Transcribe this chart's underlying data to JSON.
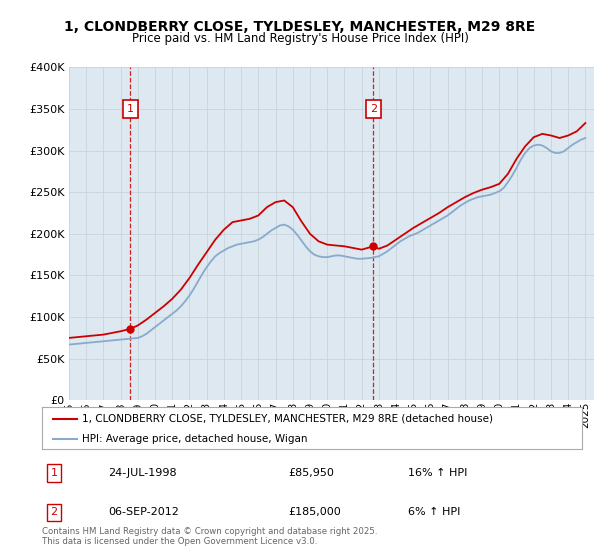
{
  "title": "1, CLONDBERRY CLOSE, TYLDESLEY, MANCHESTER, M29 8RE",
  "subtitle": "Price paid vs. HM Land Registry's House Price Index (HPI)",
  "legend_line1": "1, CLONDBERRY CLOSE, TYLDESLEY, MANCHESTER, M29 8RE (detached house)",
  "legend_line2": "HPI: Average price, detached house, Wigan",
  "footer": "Contains HM Land Registry data © Crown copyright and database right 2025.\nThis data is licensed under the Open Government Licence v3.0.",
  "transactions": [
    {
      "num": 1,
      "date": "24-JUL-1998",
      "price": "£85,950",
      "hpi": "16% ↑ HPI",
      "year": 1998.56,
      "price_val": 85950
    },
    {
      "num": 2,
      "date": "06-SEP-2012",
      "price": "£185,000",
      "hpi": "6% ↑ HPI",
      "year": 2012.68,
      "price_val": 185000
    }
  ],
  "hpi_x": [
    1995.0,
    1995.25,
    1995.5,
    1995.75,
    1996.0,
    1996.25,
    1996.5,
    1996.75,
    1997.0,
    1997.25,
    1997.5,
    1997.75,
    1998.0,
    1998.25,
    1998.5,
    1998.75,
    1999.0,
    1999.25,
    1999.5,
    1999.75,
    2000.0,
    2000.25,
    2000.5,
    2000.75,
    2001.0,
    2001.25,
    2001.5,
    2001.75,
    2002.0,
    2002.25,
    2002.5,
    2002.75,
    2003.0,
    2003.25,
    2003.5,
    2003.75,
    2004.0,
    2004.25,
    2004.5,
    2004.75,
    2005.0,
    2005.25,
    2005.5,
    2005.75,
    2006.0,
    2006.25,
    2006.5,
    2006.75,
    2007.0,
    2007.25,
    2007.5,
    2007.75,
    2008.0,
    2008.25,
    2008.5,
    2008.75,
    2009.0,
    2009.25,
    2009.5,
    2009.75,
    2010.0,
    2010.25,
    2010.5,
    2010.75,
    2011.0,
    2011.25,
    2011.5,
    2011.75,
    2012.0,
    2012.25,
    2012.5,
    2012.75,
    2013.0,
    2013.25,
    2013.5,
    2013.75,
    2014.0,
    2014.25,
    2014.5,
    2014.75,
    2015.0,
    2015.25,
    2015.5,
    2015.75,
    2016.0,
    2016.25,
    2016.5,
    2016.75,
    2017.0,
    2017.25,
    2017.5,
    2017.75,
    2018.0,
    2018.25,
    2018.5,
    2018.75,
    2019.0,
    2019.25,
    2019.5,
    2019.75,
    2020.0,
    2020.25,
    2020.5,
    2020.75,
    2021.0,
    2021.25,
    2021.5,
    2021.75,
    2022.0,
    2022.25,
    2022.5,
    2022.75,
    2023.0,
    2023.25,
    2023.5,
    2023.75,
    2024.0,
    2024.25,
    2024.5,
    2024.75,
    2025.0
  ],
  "hpi_y": [
    67000,
    67500,
    68000,
    68500,
    69000,
    69500,
    70000,
    70500,
    71000,
    71500,
    72000,
    72500,
    73000,
    73500,
    74000,
    74500,
    75000,
    77000,
    80000,
    84000,
    88000,
    92000,
    96000,
    100000,
    104000,
    108000,
    113000,
    119000,
    126000,
    134000,
    143000,
    152000,
    160000,
    167000,
    173000,
    177000,
    180000,
    183000,
    185000,
    187000,
    188000,
    189000,
    190000,
    191000,
    193000,
    196000,
    200000,
    204000,
    207000,
    210000,
    211000,
    209000,
    205000,
    199000,
    192000,
    185000,
    179000,
    175000,
    173000,
    172000,
    172000,
    173000,
    174000,
    174000,
    173000,
    172000,
    171000,
    170000,
    170000,
    170500,
    171000,
    172000,
    173000,
    176000,
    179000,
    183000,
    187000,
    191000,
    194000,
    197000,
    199000,
    201000,
    204000,
    207000,
    210000,
    213000,
    216000,
    219000,
    222000,
    226000,
    230000,
    234000,
    237000,
    240000,
    242000,
    244000,
    245000,
    246000,
    247000,
    249000,
    251000,
    255000,
    262000,
    270000,
    279000,
    289000,
    297000,
    303000,
    306000,
    307000,
    306000,
    303000,
    299000,
    297000,
    297000,
    299000,
    303000,
    307000,
    310000,
    313000,
    315000
  ],
  "price_x": [
    1995.0,
    1995.5,
    1996.0,
    1996.5,
    1997.0,
    1997.5,
    1998.0,
    1998.56,
    1999.0,
    1999.5,
    2000.0,
    2000.5,
    2001.0,
    2001.5,
    2002.0,
    2002.5,
    2003.0,
    2003.5,
    2004.0,
    2004.5,
    2005.0,
    2005.5,
    2006.0,
    2006.5,
    2007.0,
    2007.5,
    2008.0,
    2008.5,
    2009.0,
    2009.5,
    2010.0,
    2010.5,
    2011.0,
    2011.5,
    2012.0,
    2012.68,
    2013.0,
    2013.5,
    2014.0,
    2014.5,
    2015.0,
    2015.5,
    2016.0,
    2016.5,
    2017.0,
    2017.5,
    2018.0,
    2018.5,
    2019.0,
    2019.5,
    2020.0,
    2020.5,
    2021.0,
    2021.5,
    2022.0,
    2022.5,
    2023.0,
    2023.5,
    2024.0,
    2024.5,
    2025.0
  ],
  "price_y": [
    75000,
    76000,
    77000,
    78000,
    79000,
    81000,
    83000,
    85950,
    90000,
    97000,
    105000,
    113000,
    122000,
    133000,
    147000,
    163000,
    178000,
    193000,
    205000,
    214000,
    216000,
    218000,
    222000,
    232000,
    238000,
    240000,
    232000,
    215000,
    200000,
    191000,
    187000,
    186000,
    185000,
    183000,
    181000,
    185000,
    182000,
    186000,
    193000,
    200000,
    207000,
    213000,
    219000,
    225000,
    232000,
    238000,
    244000,
    249000,
    253000,
    256000,
    260000,
    272000,
    290000,
    305000,
    316000,
    320000,
    318000,
    315000,
    318000,
    323000,
    333000
  ],
  "red_color": "#cc0000",
  "blue_color": "#88aacc",
  "bg_color": "#dde8f0",
  "plot_bg": "#ffffff",
  "grid_color": "#c8d4dc",
  "ylim": [
    0,
    400000
  ],
  "xlim": [
    1995,
    2025.5
  ],
  "xticks": [
    1995,
    1996,
    1997,
    1998,
    1999,
    2000,
    2001,
    2002,
    2003,
    2004,
    2005,
    2006,
    2007,
    2008,
    2009,
    2010,
    2011,
    2012,
    2013,
    2014,
    2015,
    2016,
    2017,
    2018,
    2019,
    2020,
    2021,
    2022,
    2023,
    2024,
    2025
  ],
  "yticks": [
    0,
    50000,
    100000,
    150000,
    200000,
    250000,
    300000,
    350000,
    400000
  ]
}
